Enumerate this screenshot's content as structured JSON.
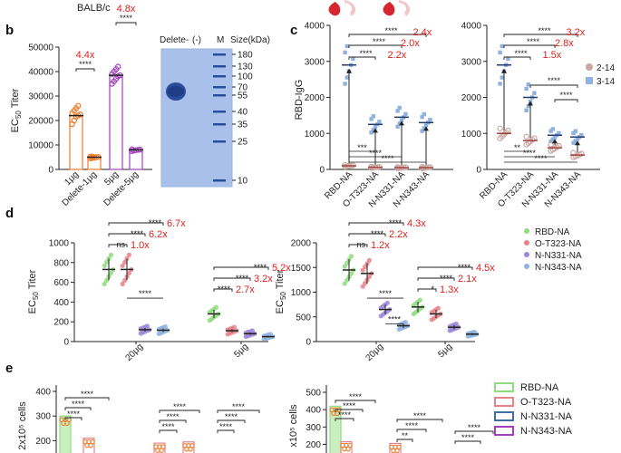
{
  "header": {
    "strain": "BALB/c"
  },
  "panel_labels": [
    "b",
    "c",
    "d",
    "e"
  ],
  "gel": {
    "lanes": [
      "Delete-",
      "(-)",
      "M"
    ],
    "size_unit": "Size(kDa)",
    "markers": [
      180,
      130,
      100,
      70,
      55,
      40,
      35,
      25,
      10
    ]
  },
  "legend_c": [
    "2-14",
    "3-14"
  ],
  "legend_d": [
    "RBD-NA",
    "O-T323-NA",
    "N-N331-NA",
    "N-N343-NA"
  ],
  "legend_e": [
    "RBD-NA",
    "O-T323-NA",
    "N-N331-NA",
    "N-N343-NA"
  ],
  "colors": {
    "orange": "#f07a2a",
    "purple": "#a23fc0",
    "blue": "#3f6fa6",
    "red": "#e0201b",
    "green": "#8fdc7e",
    "pink": "#e6838a",
    "lavender": "#9a86d6",
    "lightblue": "#8fb2df",
    "drop": "#d7262f",
    "rbd_bar": "#1f3a6b"
  },
  "chart_data": [
    {
      "id": "b",
      "type": "scatter",
      "ylabel": "EC50 Titer",
      "ylim": [
        0,
        50000
      ],
      "yticks": [
        "0",
        "10000",
        "20000",
        "30000",
        "40000",
        "50000"
      ],
      "categories": [
        "1μg",
        "Delete-1μg",
        "5μg",
        "Delete-5μg"
      ],
      "means": [
        22000,
        5000,
        38500,
        8000
      ],
      "points": [
        [
          18500,
          20000,
          21500,
          22000,
          22500,
          23000,
          24000,
          25000,
          26000
        ],
        [
          4500,
          4700,
          4800,
          5000,
          5100,
          5200,
          5300
        ],
        [
          35000,
          36000,
          37000,
          38000,
          38500,
          39000,
          40000,
          41000,
          42000
        ],
        [
          7500,
          7700,
          7900,
          8000,
          8100,
          8200
        ]
      ],
      "comparisons": [
        {
          "pair": [
            0,
            1
          ],
          "stars": "****",
          "fold": "4.4x"
        },
        {
          "pair": [
            2,
            3
          ],
          "stars": "****",
          "fold": "4.8x"
        }
      ]
    },
    {
      "id": "c-left",
      "type": "scatter",
      "ylabel": "RBD-IgG",
      "ylim": [
        0,
        4000
      ],
      "yticks": [
        "0",
        "1000",
        "2000",
        "3000",
        "4000"
      ],
      "categories": [
        "RBD-NA",
        "O-T323-NA",
        "N-N331-NA",
        "N-N343-NA"
      ],
      "means_2_14": [
        100,
        60,
        50,
        50
      ],
      "means_3_14": [
        2900,
        1250,
        1450,
        1300
      ],
      "comparisons_top": [
        {
          "stars": "****",
          "fold": "2.4x"
        },
        {
          "stars": "****",
          "fold": "2.0x"
        },
        {
          "stars": "****",
          "fold": "2.2x"
        }
      ],
      "comparisons_bottom": [
        "***",
        "****",
        "****"
      ]
    },
    {
      "id": "c-right",
      "type": "scatter",
      "ylim": [
        0,
        4000
      ],
      "yticks": [
        "0",
        "1000",
        "2000",
        "3000",
        "4000"
      ],
      "categories": [
        "RBD-NA",
        "O-T323-NA",
        "N-N331-NA",
        "N-N343-NA"
      ],
      "means_2_14": [
        1000,
        800,
        600,
        400
      ],
      "means_3_14": [
        2900,
        2000,
        950,
        900
      ],
      "comparisons_top": [
        {
          "stars": "****",
          "fold": "3.2x"
        },
        {
          "stars": "****",
          "fold": "2.8x"
        },
        {
          "stars": "****",
          "fold": "1.5x"
        }
      ],
      "comparisons_mid": [
        "****",
        "****"
      ],
      "comparisons_bottom": [
        "**",
        "****",
        "****"
      ]
    },
    {
      "id": "d-left",
      "type": "scatter",
      "ylabel": "EC50 Titer",
      "ylim": [
        0,
        1000
      ],
      "yticks": [
        "0",
        "200",
        "400",
        "600",
        "800",
        "1000"
      ],
      "groups": [
        "20μg",
        "5μg"
      ],
      "means": [
        [
          730,
          730,
          120,
          115
        ],
        [
          280,
          110,
          80,
          50
        ]
      ],
      "comparisons": [
        {
          "group": 0,
          "stars": "****",
          "fold": "6.7x"
        },
        {
          "group": 0,
          "stars": "****",
          "fold": "6.2x"
        },
        {
          "group": 0,
          "stars": "ns",
          "fold": "1.0x"
        },
        {
          "group": 1,
          "stars": "****",
          "fold": "5.2x"
        },
        {
          "group": 1,
          "stars": "****",
          "fold": "3.2x"
        },
        {
          "group": 1,
          "stars": "****",
          "fold": "2.7x"
        }
      ],
      "extra": [
        "****"
      ]
    },
    {
      "id": "d-right",
      "type": "scatter",
      "ylabel": "EC50 Titer",
      "ylim": [
        0,
        2000
      ],
      "yticks": [
        "0",
        "500",
        "1000",
        "1500",
        "2000"
      ],
      "groups": [
        "20μg",
        "5μg"
      ],
      "means": [
        [
          1450,
          1380,
          650,
          320
        ],
        [
          700,
          560,
          290,
          150
        ]
      ],
      "comparisons": [
        {
          "group": 0,
          "stars": "****",
          "fold": "4.3x"
        },
        {
          "group": 0,
          "stars": "****",
          "fold": "2.2x"
        },
        {
          "group": 0,
          "stars": "ns",
          "fold": "1.2x"
        },
        {
          "group": 1,
          "stars": "****",
          "fold": "4.5x"
        },
        {
          "group": 1,
          "stars": "****",
          "fold": "2.1x"
        },
        {
          "group": 1,
          "stars": "*",
          "fold": "1.3x"
        }
      ],
      "extra": [
        "****",
        "****"
      ]
    },
    {
      "id": "e-left",
      "type": "bar",
      "ylabel": "2x10⁵ cells",
      "yticks": [
        "200",
        "300",
        "400"
      ],
      "ylim": [
        150,
        400
      ],
      "bar_values": [
        300,
        210,
        190,
        195
      ],
      "stars": [
        "****",
        "****",
        "****",
        "****",
        "****",
        "****",
        "****",
        "****",
        "****"
      ]
    },
    {
      "id": "e-right",
      "type": "bar",
      "ylabel": "x10⁵ cells",
      "yticks": [
        "200",
        "300",
        "400",
        "500"
      ],
      "ylim": [
        150,
        500
      ],
      "bar_values": [
        420,
        215,
        205
      ],
      "stars": [
        "****",
        "****",
        "****",
        "****",
        "****",
        "**",
        "****",
        "****"
      ]
    }
  ]
}
